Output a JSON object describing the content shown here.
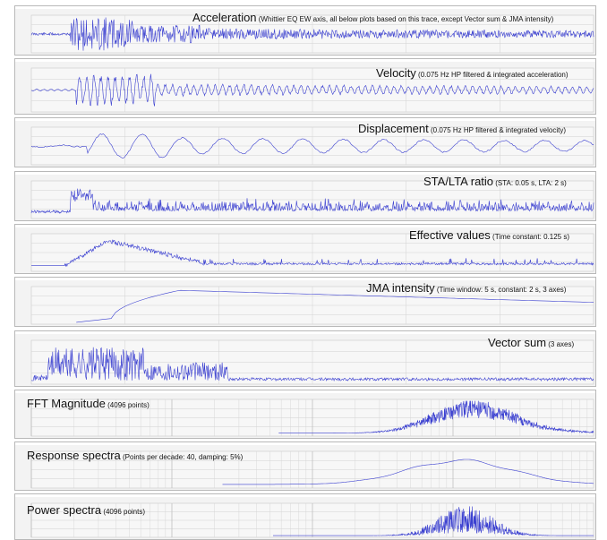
{
  "colors": {
    "trace": "#3a3fd0",
    "panel_bg": "#f3f3f3",
    "grid": "#d2d2d2",
    "header_text": "#b56a00"
  },
  "chart_data": [
    {
      "type": "line",
      "id": "acceleration",
      "title": "Acceleration",
      "subtitle": "(Whittier EQ EW axis, all below plots based on this trace, except Vector sum & JMA intensity)",
      "shape": "accel",
      "seed": 11,
      "title_align": "right",
      "xlabel": "",
      "ylabel": "",
      "grid": true
    },
    {
      "type": "line",
      "id": "velocity",
      "title": "Velocity",
      "subtitle": "(0.075 Hz HP filtered & integrated acceleration)",
      "shape": "velocity",
      "seed": 23,
      "title_align": "right",
      "xlabel": "",
      "ylabel": "",
      "grid": true
    },
    {
      "type": "line",
      "id": "displacement",
      "title": "Displacement",
      "subtitle": "(0.075 Hz HP filtered & integrated velocity)",
      "shape": "displacement",
      "seed": 37,
      "title_align": "right",
      "xlabel": "",
      "ylabel": "",
      "grid": true
    },
    {
      "type": "line",
      "id": "sta_lta",
      "title": "STA/LTA ratio",
      "subtitle": "(STA: 0.05 s, LTA: 2 s)",
      "shape": "stalta",
      "seed": 41,
      "title_align": "right",
      "xlabel": "",
      "ylabel": "",
      "grid": true
    },
    {
      "type": "line",
      "id": "effective_values",
      "title": "Effective values",
      "subtitle": "(Time constant: 0.125 s)",
      "shape": "effective",
      "seed": 53,
      "title_align": "right",
      "xlabel": "",
      "ylabel": "",
      "grid": true
    },
    {
      "type": "line",
      "id": "jma_intensity",
      "title": "JMA intensity",
      "subtitle": "(Time window: 5 s, constant: 2 s, 3 axes)",
      "shape": "jma",
      "seed": 61,
      "title_align": "right",
      "xlabel": "",
      "ylabel": "",
      "grid": true
    },
    {
      "type": "line",
      "id": "vector_sum",
      "title": "Vector sum",
      "subtitle": "(3 axes)",
      "shape": "vector",
      "seed": 71,
      "title_align": "right",
      "xlabel": "",
      "ylabel": "",
      "grid": true
    },
    {
      "type": "line",
      "id": "fft_magnitude",
      "title": "FFT Magnitude",
      "subtitle": "(4096 points)",
      "shape": "fft",
      "seed": 83,
      "title_align": "left",
      "xscale": "log",
      "xlabel": "",
      "ylabel": "",
      "grid": true
    },
    {
      "type": "line",
      "id": "response_spectra",
      "title": "Response spectra",
      "subtitle": "(Points per decade: 40, damping: 5%)",
      "shape": "response",
      "seed": 97,
      "title_align": "left",
      "xscale": "log",
      "xlabel": "",
      "ylabel": "",
      "grid": true
    },
    {
      "type": "line",
      "id": "power_spectra",
      "title": "Power spectra",
      "subtitle": "(4096 points)",
      "shape": "power",
      "seed": 101,
      "title_align": "left",
      "xscale": "log",
      "xlabel": "",
      "ylabel": "",
      "grid": true
    }
  ]
}
